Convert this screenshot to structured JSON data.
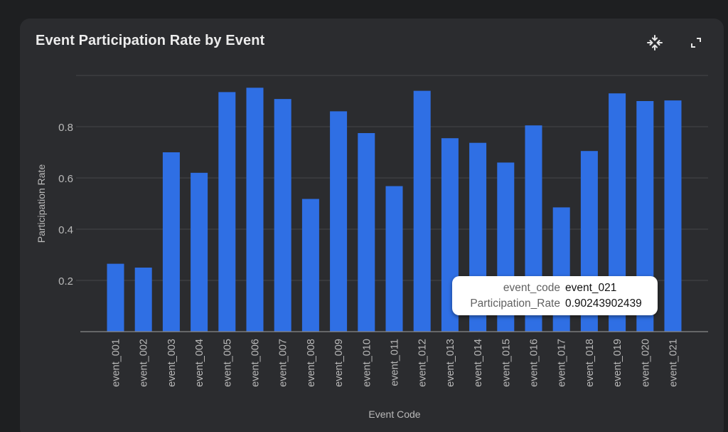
{
  "card": {
    "title": "Event Participation Rate by Event"
  },
  "toolbar": {
    "focus_icon": "collapse-arrows-icon",
    "fullscreen_icon": "fullscreen-icon"
  },
  "colors": {
    "bar": "#2f6fe4",
    "background": "#2b2c2f",
    "gridline": "#45464a",
    "axis_text": "#b9b9b9"
  },
  "chart_data": {
    "type": "bar",
    "xlabel": "Event Code",
    "ylabel": "Participation Rate",
    "ylim": [
      0,
      1.0
    ],
    "yticks": [
      0.2,
      0.4,
      0.6,
      0.8
    ],
    "grid": true,
    "categories": [
      "event_001",
      "event_002",
      "event_003",
      "event_004",
      "event_005",
      "event_006",
      "event_007",
      "event_008",
      "event_009",
      "event_010",
      "event_011",
      "event_012",
      "event_013",
      "event_014",
      "event_015",
      "event_016",
      "event_017",
      "event_018",
      "event_019",
      "event_020",
      "event_021"
    ],
    "values": [
      0.265,
      0.25,
      0.7,
      0.62,
      0.935,
      0.952,
      0.908,
      0.518,
      0.86,
      0.775,
      0.568,
      0.94,
      0.755,
      0.737,
      0.66,
      0.805,
      0.485,
      0.705,
      0.93,
      0.9,
      0.90243902439
    ]
  },
  "tooltip": {
    "key1": "event_code",
    "val1": "event_021",
    "key2": "Participation_Rate",
    "val2": "0.90243902439"
  }
}
